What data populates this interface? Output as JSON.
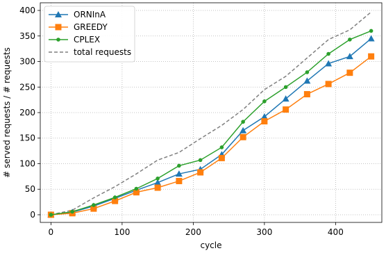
{
  "chart_data": {
    "type": "line",
    "xlabel": "cycle",
    "ylabel": "# served requests / # requests",
    "xlim": [
      -15,
      465
    ],
    "ylim": [
      -15,
      415
    ],
    "xticks": [
      0,
      100,
      200,
      300,
      400
    ],
    "yticks": [
      0,
      50,
      100,
      150,
      200,
      250,
      300,
      350,
      400
    ],
    "grid": true,
    "legend_position": "top-left",
    "x": [
      0,
      30,
      60,
      90,
      120,
      150,
      180,
      210,
      240,
      270,
      300,
      330,
      360,
      390,
      420,
      450
    ],
    "series": [
      {
        "name": "ORNInA",
        "color": "#1f77b4",
        "marker": "triangle",
        "dashed": false,
        "values": [
          0,
          5,
          17,
          32,
          48,
          63,
          80,
          89,
          118,
          165,
          192,
          227,
          262,
          296,
          310,
          345
        ]
      },
      {
        "name": "GREEDY",
        "color": "#ff7f0e",
        "marker": "square",
        "dashed": false,
        "values": [
          0,
          3,
          12,
          27,
          44,
          53,
          66,
          83,
          111,
          152,
          183,
          206,
          236,
          256,
          278,
          310
        ]
      },
      {
        "name": "CPLEX",
        "color": "#2ca02c",
        "marker": "circle",
        "dashed": false,
        "values": [
          0,
          6,
          19,
          34,
          51,
          71,
          96,
          107,
          132,
          182,
          222,
          250,
          279,
          315,
          343,
          360
        ]
      },
      {
        "name": "total requests",
        "color": "#7f7f7f",
        "marker": "none",
        "dashed": true,
        "values": [
          0,
          9,
          33,
          55,
          80,
          107,
          122,
          149,
          175,
          206,
          245,
          271,
          307,
          343,
          362,
          397
        ]
      }
    ]
  }
}
